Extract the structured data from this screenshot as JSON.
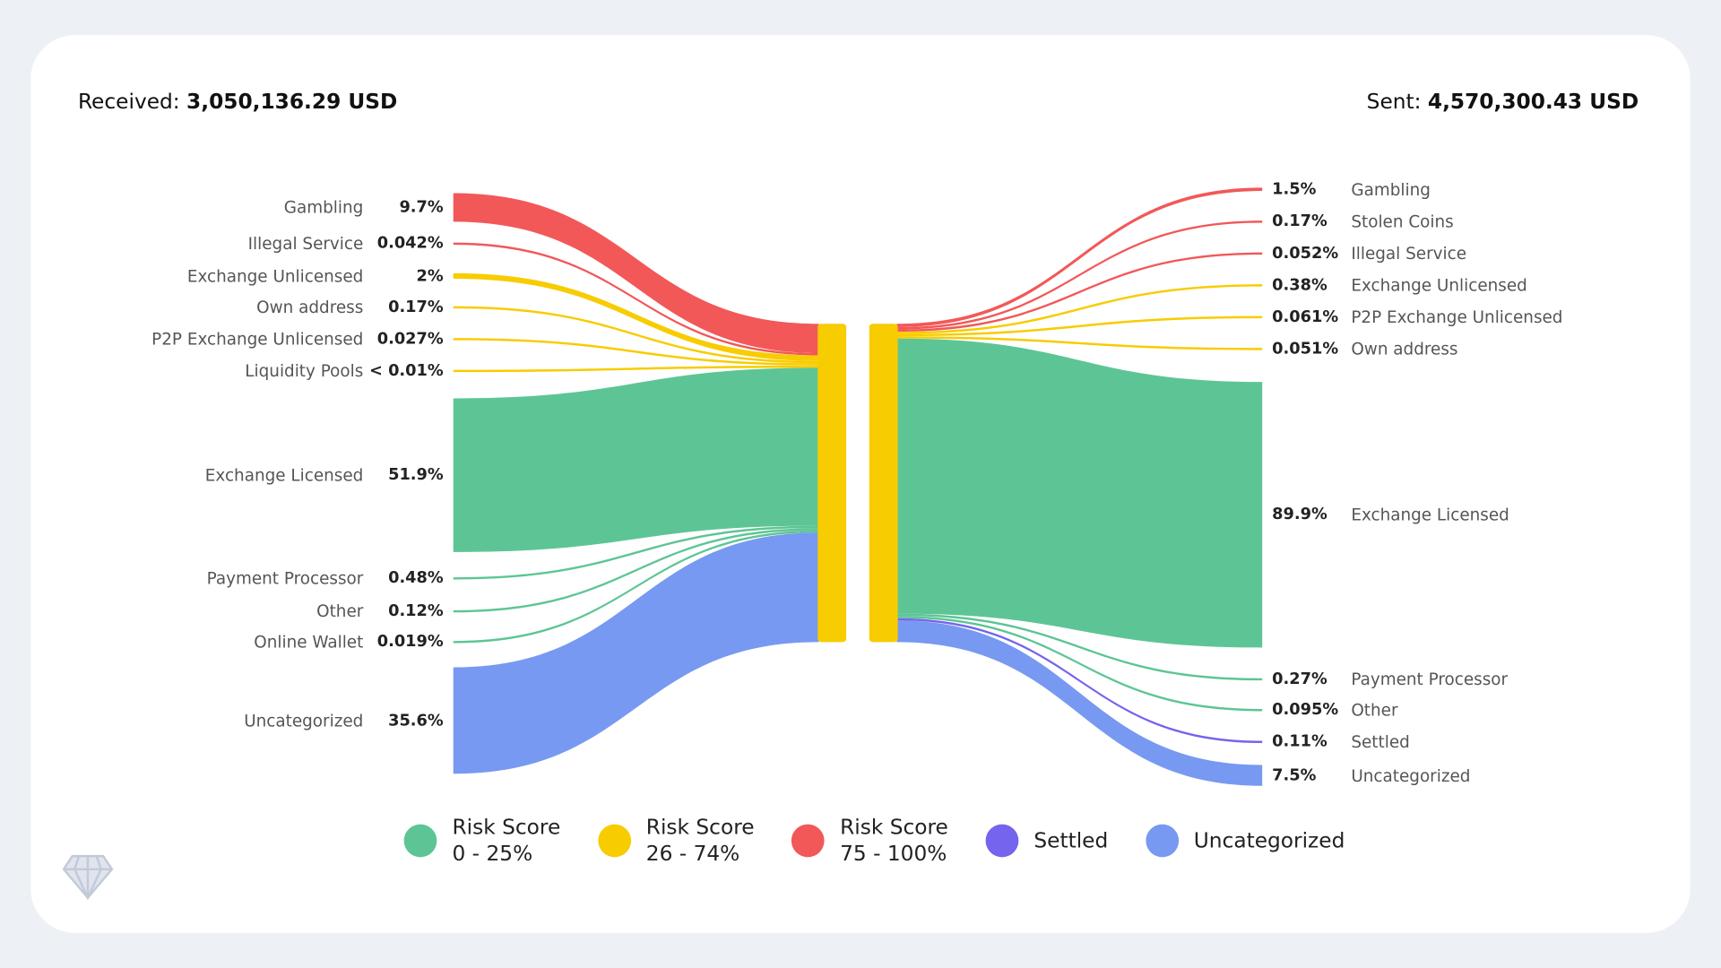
{
  "header": {
    "received_label": "Received:",
    "received_value": "3,050,136.29 USD",
    "sent_label": "Sent:",
    "sent_value": "4,570,300.43 USD"
  },
  "colors": {
    "low": "#5dc595",
    "medium": "#f7cc00",
    "high": "#f25858",
    "settled": "#7464ee",
    "uncategorized": "#7799f1",
    "background": "#edf0f5"
  },
  "chart_data": {
    "type": "sankey",
    "center_node_category": "medium",
    "incoming": [
      {
        "label": "Gambling",
        "pct": "9.7%",
        "value": 9.7,
        "category": "high"
      },
      {
        "label": "Illegal Service",
        "pct": "0.042%",
        "value": 0.042,
        "category": "high"
      },
      {
        "label": "Exchange Unlicensed",
        "pct": "2%",
        "value": 2,
        "category": "medium"
      },
      {
        "label": "Own address",
        "pct": "0.17%",
        "value": 0.17,
        "category": "medium"
      },
      {
        "label": "P2P Exchange Unlicensed",
        "pct": "0.027%",
        "value": 0.027,
        "category": "medium"
      },
      {
        "label": "Liquidity Pools",
        "pct": "< 0.01%",
        "value": 0.01,
        "category": "medium"
      },
      {
        "label": "Exchange Licensed",
        "pct": "51.9%",
        "value": 51.9,
        "category": "low"
      },
      {
        "label": "Payment Processor",
        "pct": "0.48%",
        "value": 0.48,
        "category": "low"
      },
      {
        "label": "Other",
        "pct": "0.12%",
        "value": 0.12,
        "category": "low"
      },
      {
        "label": "Online Wallet",
        "pct": "0.019%",
        "value": 0.019,
        "category": "low"
      },
      {
        "label": "Uncategorized",
        "pct": "35.6%",
        "value": 35.6,
        "category": "uncategorized"
      }
    ],
    "outgoing": [
      {
        "label": "Gambling",
        "pct": "1.5%",
        "value": 1.5,
        "category": "high"
      },
      {
        "label": "Stolen Coins",
        "pct": "0.17%",
        "value": 0.17,
        "category": "high"
      },
      {
        "label": "Illegal Service",
        "pct": "0.052%",
        "value": 0.052,
        "category": "high"
      },
      {
        "label": "Exchange Unlicensed",
        "pct": "0.38%",
        "value": 0.38,
        "category": "medium"
      },
      {
        "label": "P2P Exchange Unlicensed",
        "pct": "0.061%",
        "value": 0.061,
        "category": "medium"
      },
      {
        "label": "Own address",
        "pct": "0.051%",
        "value": 0.051,
        "category": "medium"
      },
      {
        "label": "Exchange Licensed",
        "pct": "89.9%",
        "value": 89.9,
        "category": "low"
      },
      {
        "label": "Payment Processor",
        "pct": "0.27%",
        "value": 0.27,
        "category": "low"
      },
      {
        "label": "Other",
        "pct": "0.095%",
        "value": 0.095,
        "category": "low"
      },
      {
        "label": "Settled",
        "pct": "0.11%",
        "value": 0.11,
        "category": "settled"
      },
      {
        "label": "Uncategorized",
        "pct": "7.5%",
        "value": 7.5,
        "category": "uncategorized"
      }
    ],
    "legend": [
      {
        "line1": "Risk Score",
        "line2": "0 - 25%",
        "category": "low"
      },
      {
        "line1": "Risk Score",
        "line2": "26 - 74%",
        "category": "medium"
      },
      {
        "line1": "Risk Score",
        "line2": "75 - 100%",
        "category": "high"
      },
      {
        "line1": "Settled",
        "line2": "",
        "category": "settled"
      },
      {
        "line1": "Uncategorized",
        "line2": "",
        "category": "uncategorized"
      }
    ]
  }
}
